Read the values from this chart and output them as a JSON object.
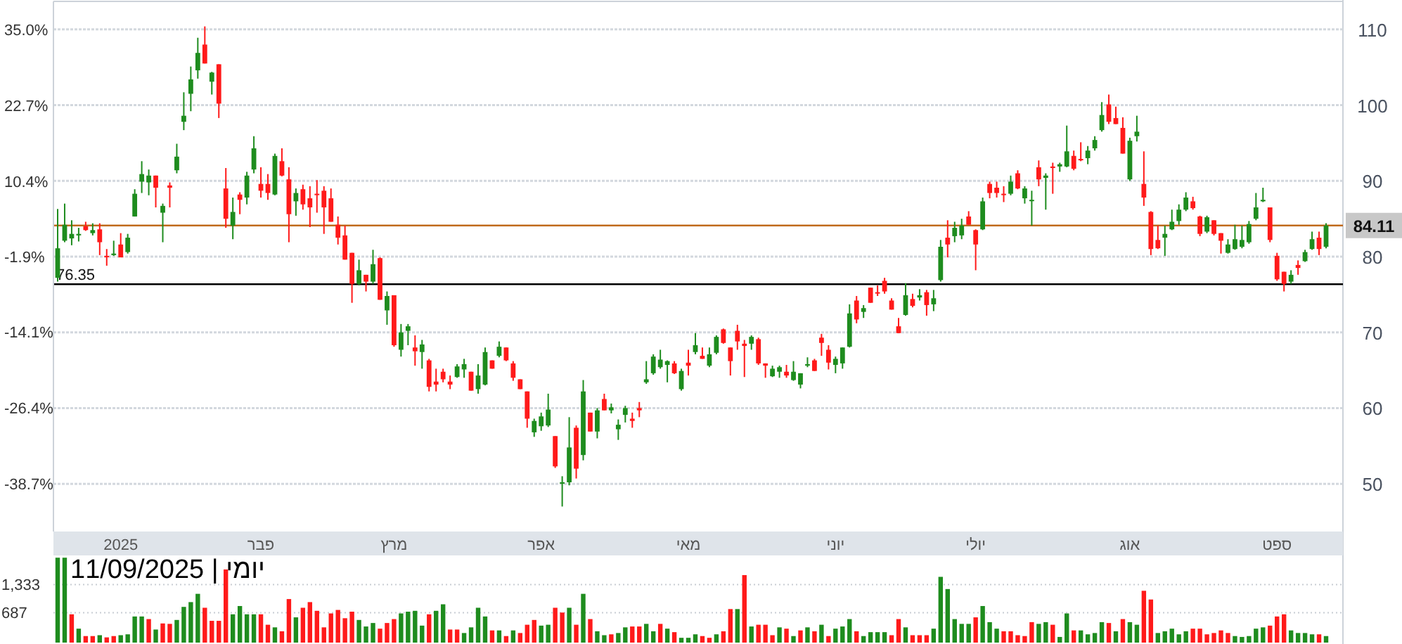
{
  "chart_data": [
    {
      "type": "candlestick",
      "categories": [
        null,
        null,
        null,
        null,
        null,
        null,
        null,
        null,
        null,
        "2025",
        null,
        null,
        null,
        null,
        null,
        null,
        null,
        null,
        null,
        null,
        null,
        null,
        null,
        null,
        null,
        null,
        null,
        null,
        null,
        "פבר",
        null,
        null,
        null,
        null,
        null,
        null,
        null,
        null,
        null,
        null,
        null,
        null,
        null,
        null,
        null,
        null,
        null,
        null,
        "מרץ",
        null,
        null,
        null,
        null,
        null,
        null,
        null,
        null,
        null,
        null,
        null,
        null,
        null,
        null,
        null,
        null,
        null,
        null,
        null,
        null,
        "אפר",
        null,
        null,
        null,
        null,
        null,
        null,
        null,
        null,
        null,
        null,
        null,
        null,
        null,
        null,
        null,
        null,
        null,
        null,
        null,
        null,
        "מאי",
        null,
        null,
        null,
        null,
        null,
        null,
        null,
        null,
        null,
        null,
        null,
        null,
        null,
        null,
        null,
        null,
        null,
        null,
        null,
        null,
        "יוני",
        null,
        null,
        null,
        null,
        null,
        null,
        null,
        null,
        null,
        null,
        null,
        null,
        null,
        null,
        null,
        null,
        null,
        null,
        null,
        "יולי",
        null,
        null,
        null,
        null,
        null,
        null,
        null,
        null,
        null,
        null,
        null,
        null,
        null,
        null,
        null,
        null,
        null,
        null,
        null,
        null,
        null,
        "אוג",
        null,
        null,
        null,
        null,
        null,
        null,
        null,
        null,
        null,
        null,
        null,
        null,
        null,
        null,
        null,
        null,
        null,
        null,
        null,
        null,
        "ספט",
        null,
        null,
        null,
        null,
        null,
        null,
        null
      ],
      "ohlc": [
        [
          77.2,
          86.3,
          76.7,
          81.1
        ],
        [
          82.1,
          87.0,
          81.9,
          84.2
        ],
        [
          82.4,
          84.8,
          81.5,
          83.0
        ],
        [
          82.8,
          83.8,
          82.0,
          83.0
        ],
        [
          84.0,
          84.6,
          83.4,
          83.5
        ],
        [
          83.1,
          84.4,
          82.8,
          83.5
        ],
        [
          83.6,
          84.4,
          80.2,
          81.9
        ],
        [
          80.1,
          81.0,
          78.8,
          80.0
        ],
        [
          80.2,
          82.1,
          80.1,
          80.4
        ],
        [
          81.6,
          83.1,
          79.9,
          79.9
        ],
        [
          80.6,
          83.0,
          80.4,
          82.5
        ],
        [
          85.3,
          88.9,
          85.3,
          88.3
        ],
        [
          89.9,
          92.6,
          88.4,
          90.9
        ],
        [
          89.8,
          91.5,
          88.1,
          90.7
        ],
        [
          90.7,
          90.7,
          86.5,
          89.1
        ],
        [
          85.8,
          87.0,
          81.9,
          86.7
        ],
        [
          89.4,
          89.8,
          86.5,
          89.1
        ],
        [
          91.4,
          94.9,
          91.0,
          93.2
        ],
        [
          97.8,
          101.7,
          96.7,
          98.6
        ],
        [
          101.5,
          105.1,
          99.2,
          103.4
        ],
        [
          104.6,
          108.9,
          103.5,
          106.9
        ],
        [
          108.0,
          110.4,
          105.5,
          105.5
        ],
        [
          103.1,
          104.4,
          101.4,
          104.3
        ],
        [
          105.4,
          105.4,
          98.3,
          100.2
        ],
        [
          89.0,
          91.7,
          83.8,
          85.0
        ],
        [
          84.1,
          87.8,
          82.3,
          85.9
        ],
        [
          88.2,
          88.5,
          85.6,
          87.5
        ],
        [
          87.8,
          91.2,
          86.9,
          90.7
        ],
        [
          91.5,
          95.9,
          91.0,
          94.3
        ],
        [
          89.6,
          91.8,
          87.8,
          88.7
        ],
        [
          89.6,
          90.9,
          87.5,
          88.4
        ],
        [
          88.2,
          93.6,
          88.1,
          93.3
        ],
        [
          92.6,
          94.3,
          90.6,
          90.7
        ],
        [
          90.2,
          91.8,
          81.9,
          85.6
        ],
        [
          87.3,
          89.0,
          85.4,
          88.4
        ],
        [
          88.9,
          89.5,
          86.2,
          86.9
        ],
        [
          87.7,
          89.3,
          83.9,
          86.5
        ],
        [
          88.3,
          90.1,
          85.8,
          88.2
        ],
        [
          88.7,
          89.3,
          83.0,
          86.5
        ],
        [
          87.7,
          89.0,
          84.6,
          84.6
        ],
        [
          84.2,
          85.3,
          81.6,
          82.5
        ],
        [
          82.8,
          84.1,
          79.6,
          79.6
        ],
        [
          80.5,
          80.5,
          73.9,
          76.4
        ],
        [
          76.4,
          79.6,
          76.2,
          78.2
        ],
        [
          77.6,
          77.6,
          75.4,
          76.7
        ],
        [
          76.7,
          80.9,
          76.4,
          79.0
        ],
        [
          79.8,
          79.9,
          74.3,
          74.3
        ],
        [
          72.9,
          75.4,
          71.0,
          74.8
        ],
        [
          74.9,
          74.9,
          68.1,
          68.3
        ],
        [
          67.7,
          71.1,
          66.8,
          70.0
        ],
        [
          70.2,
          71.1,
          68.3,
          70.8
        ],
        [
          68.0,
          69.6,
          65.6,
          67.5
        ],
        [
          67.4,
          69.0,
          65.2,
          68.4
        ],
        [
          66.3,
          66.5,
          62.2,
          62.8
        ],
        [
          63.5,
          65.2,
          62.2,
          63.1
        ],
        [
          64.8,
          65.2,
          63.4,
          63.8
        ],
        [
          63.5,
          64.3,
          62.5,
          63.1
        ],
        [
          64.1,
          65.8,
          64.0,
          65.5
        ],
        [
          65.1,
          66.5,
          64.0,
          65.8
        ],
        [
          64.8,
          64.8,
          62.3,
          62.3
        ],
        [
          62.5,
          65.8,
          61.9,
          64.3
        ],
        [
          63.1,
          68.0,
          63.0,
          67.4
        ],
        [
          66.3,
          66.3,
          65.2,
          65.2
        ],
        [
          66.9,
          68.8,
          66.7,
          68.1
        ],
        [
          68.0,
          68.0,
          66.2,
          66.3
        ],
        [
          65.9,
          66.2,
          63.6,
          64.0
        ],
        [
          63.8,
          63.8,
          62.5,
          62.5
        ],
        [
          62.2,
          62.2,
          57.4,
          58.6
        ],
        [
          56.8,
          58.6,
          56.2,
          58.3
        ],
        [
          57.6,
          59.4,
          57.0,
          58.9
        ],
        [
          57.7,
          61.9,
          57.5,
          59.8
        ],
        [
          56.3,
          56.3,
          52.1,
          52.3
        ],
        [
          50.1,
          51.0,
          47.0,
          50.2
        ],
        [
          50.2,
          58.8,
          49.8,
          54.8
        ],
        [
          57.4,
          57.7,
          50.7,
          52.0
        ],
        [
          53.8,
          63.7,
          53.1,
          62.2
        ],
        [
          59.4,
          59.4,
          56.9,
          56.9
        ],
        [
          56.9,
          60.0,
          56.0,
          59.7
        ],
        [
          61.2,
          61.9,
          59.7,
          59.7
        ],
        [
          59.7,
          60.6,
          59.3,
          60.1
        ],
        [
          57.2,
          58.5,
          55.8,
          57.8
        ],
        [
          59.1,
          60.3,
          58.1,
          60.0
        ],
        [
          58.6,
          59.4,
          57.4,
          58.3
        ],
        [
          60.0,
          60.8,
          58.8,
          59.7
        ],
        [
          63.4,
          66.2,
          63.2,
          63.8
        ],
        [
          64.6,
          67.1,
          64.4,
          66.8
        ],
        [
          65.4,
          67.7,
          65.2,
          66.4
        ],
        [
          65.7,
          66.3,
          63.4,
          66.2
        ],
        [
          65.9,
          66.2,
          64.5,
          64.6
        ],
        [
          62.5,
          65.2,
          62.3,
          64.9
        ],
        [
          66.0,
          67.7,
          64.3,
          65.6
        ],
        [
          67.4,
          69.9,
          67.1,
          68.3
        ],
        [
          66.9,
          68.0,
          66.5,
          66.5
        ],
        [
          65.6,
          68.0,
          65.4,
          67.1
        ],
        [
          67.3,
          69.6,
          67.1,
          69.4
        ],
        [
          70.4,
          70.5,
          68.5,
          68.6
        ],
        [
          68.0,
          68.0,
          64.3,
          66.2
        ],
        [
          70.2,
          71.0,
          67.7,
          68.8
        ],
        [
          68.5,
          69.0,
          64.1,
          68.2
        ],
        [
          68.5,
          69.6,
          67.7,
          69.4
        ],
        [
          69.1,
          69.3,
          65.7,
          65.9
        ],
        [
          65.9,
          65.9,
          64.0,
          65.6
        ],
        [
          64.2,
          65.6,
          64.1,
          65.2
        ],
        [
          64.8,
          65.6,
          64.0,
          65.4
        ],
        [
          64.8,
          65.7,
          64.0,
          64.3
        ],
        [
          63.7,
          66.2,
          63.6,
          64.8
        ],
        [
          63.1,
          64.6,
          62.6,
          64.6
        ],
        [
          65.6,
          66.7,
          65.4,
          65.8
        ],
        [
          66.3,
          66.5,
          64.9,
          64.9
        ],
        [
          69.3,
          69.8,
          66.9,
          68.6
        ],
        [
          67.7,
          68.3,
          65.1,
          66.0
        ],
        [
          65.7,
          66.8,
          64.6,
          66.5
        ],
        [
          65.9,
          68.0,
          65.2,
          68.0
        ],
        [
          68.1,
          73.7,
          68.0,
          72.5
        ],
        [
          74.2,
          74.8,
          71.2,
          71.7
        ],
        [
          72.7,
          73.6,
          71.9,
          73.2
        ],
        [
          75.9,
          75.9,
          73.9,
          73.9
        ],
        [
          75.3,
          76.2,
          74.8,
          75.2
        ],
        [
          76.8,
          77.2,
          75.1,
          75.4
        ],
        [
          74.2,
          74.5,
          73.0,
          73.0
        ],
        [
          70.8,
          71.9,
          69.9,
          69.9
        ],
        [
          72.3,
          76.5,
          72.2,
          74.9
        ],
        [
          74.4,
          75.1,
          73.3,
          73.5
        ],
        [
          74.6,
          75.7,
          74.2,
          74.9
        ],
        [
          75.3,
          75.6,
          72.2,
          73.6
        ],
        [
          73.7,
          75.6,
          72.8,
          74.5
        ],
        [
          76.9,
          82.2,
          76.7,
          81.3
        ],
        [
          82.5,
          84.8,
          79.9,
          81.6
        ],
        [
          82.7,
          84.6,
          81.9,
          83.8
        ],
        [
          82.8,
          85.0,
          82.3,
          84.1
        ],
        [
          85.3,
          86.0,
          84.2,
          84.2
        ],
        [
          83.5,
          83.6,
          78.2,
          81.6
        ],
        [
          83.6,
          87.8,
          83.5,
          87.3
        ],
        [
          89.6,
          89.9,
          87.7,
          88.4
        ],
        [
          89.1,
          89.9,
          87.8,
          88.4
        ],
        [
          88.3,
          89.3,
          87.2,
          88.2
        ],
        [
          88.3,
          90.7,
          88.1,
          89.9
        ],
        [
          91.0,
          91.4,
          88.9,
          89.0
        ],
        [
          87.7,
          89.3,
          87.0,
          89.0
        ],
        [
          87.4,
          88.7,
          84.1,
          87.5
        ],
        [
          91.8,
          92.7,
          89.3,
          90.2
        ],
        [
          90.4,
          91.0,
          86.2,
          90.7
        ],
        [
          91.9,
          92.4,
          88.3,
          91.7
        ],
        [
          91.9,
          92.4,
          91.2,
          92.2
        ],
        [
          91.9,
          97.3,
          91.8,
          93.9
        ],
        [
          93.3,
          94.0,
          91.4,
          91.6
        ],
        [
          92.9,
          95.1,
          92.6,
          92.8
        ],
        [
          93.0,
          94.6,
          92.2,
          94.0
        ],
        [
          94.3,
          95.9,
          94.0,
          95.4
        ],
        [
          96.7,
          100.4,
          96.5,
          98.7
        ],
        [
          100.1,
          101.4,
          97.5,
          97.8
        ],
        [
          98.3,
          99.8,
          97.5,
          97.5
        ],
        [
          97.0,
          98.4,
          93.6,
          93.6
        ],
        [
          90.2,
          95.7,
          90.0,
          95.3
        ],
        [
          95.9,
          98.6,
          95.2,
          96.5
        ],
        [
          89.6,
          93.9,
          86.7,
          87.8
        ],
        [
          85.9,
          86.0,
          80.2,
          81.0
        ],
        [
          82.2,
          84.1,
          81.0,
          81.1
        ],
        [
          82.5,
          84.1,
          80.1,
          83.0
        ],
        [
          83.6,
          86.2,
          83.5,
          84.6
        ],
        [
          84.7,
          86.9,
          84.2,
          86.2
        ],
        [
          86.2,
          88.5,
          86.0,
          87.8
        ],
        [
          87.3,
          87.9,
          86.2,
          86.4
        ],
        [
          85.3,
          85.4,
          82.7,
          83.0
        ],
        [
          83.3,
          85.4,
          83.1,
          85.2
        ],
        [
          84.8,
          84.8,
          82.8,
          83.0
        ],
        [
          83.1,
          83.1,
          80.4,
          82.1
        ],
        [
          80.5,
          82.3,
          80.4,
          81.6
        ],
        [
          81.0,
          84.2,
          80.9,
          82.3
        ],
        [
          81.3,
          84.1,
          81.1,
          82.2
        ],
        [
          81.9,
          84.7,
          81.7,
          84.3
        ],
        [
          85.0,
          88.4,
          84.8,
          86.5
        ],
        [
          87.3,
          89.1,
          87.2,
          87.5
        ],
        [
          86.5,
          86.5,
          81.9,
          82.2
        ],
        [
          80.1,
          80.5,
          76.8,
          77.0
        ],
        [
          78.0,
          78.0,
          75.4,
          76.4
        ],
        [
          76.7,
          78.2,
          76.4,
          77.6
        ],
        [
          78.9,
          79.5,
          77.6,
          78.5
        ],
        [
          79.4,
          80.9,
          79.3,
          80.6
        ],
        [
          81.0,
          83.3,
          80.9,
          82.3
        ],
        [
          82.5,
          83.3,
          80.2,
          81.0
        ],
        [
          81.3,
          84.4,
          81.1,
          84.11
        ]
      ],
      "ylim": [
        43.7,
        113.7
      ],
      "yticks": [
        50,
        60,
        70,
        80,
        90,
        100,
        110
      ],
      "y2lim": [
        -46.44,
        39.54
      ],
      "y2ticks": [
        {
          "value": 35.0,
          "label": "35.0%"
        },
        {
          "value": 22.7,
          "label": "22.7%"
        },
        {
          "value": 10.4,
          "label": "10.4%"
        },
        {
          "value": -1.9,
          "label": "-1.9%"
        },
        {
          "value": -14.1,
          "label": "-14.1%"
        },
        {
          "value": -26.4,
          "label": "-26.4%"
        },
        {
          "value": -38.7,
          "label": "-38.7%"
        }
      ],
      "grid": "y",
      "ref_lines": [
        {
          "axis": "y",
          "value": 84.11,
          "label": "84.11",
          "color": "#c06a1c"
        },
        {
          "axis": "y",
          "value": 76.35,
          "label": "76.35",
          "color": "#000000"
        }
      ]
    },
    {
      "type": "bar",
      "title": "11/09/2025 | יומי",
      "categories": [
        null,
        null,
        null,
        null,
        null,
        null,
        null,
        null,
        null,
        null,
        null,
        null,
        null,
        null,
        null,
        null,
        null,
        null,
        null,
        null,
        null,
        null,
        null,
        null,
        null,
        null,
        null,
        null,
        null,
        null,
        null,
        null,
        null,
        null,
        null,
        null,
        null,
        null,
        null,
        null,
        null,
        null,
        null,
        null,
        null,
        null,
        null,
        null,
        null,
        null,
        null,
        null,
        null,
        null,
        null,
        null,
        null,
        null,
        null,
        null,
        null,
        null,
        null,
        null,
        null,
        null,
        null,
        null,
        null,
        null,
        null,
        null,
        null,
        null,
        null,
        null,
        null,
        null,
        null,
        null,
        null,
        null,
        null,
        null,
        null,
        null,
        null,
        null,
        null,
        null,
        null,
        null,
        null,
        null,
        null,
        null,
        null,
        null,
        null,
        null,
        null,
        null,
        null,
        null,
        null,
        null,
        null,
        null,
        null,
        null,
        null,
        null,
        null,
        null,
        null,
        null,
        null,
        null,
        null,
        null,
        null,
        null,
        null,
        null,
        null,
        null,
        null,
        null,
        null,
        null,
        null,
        null,
        null,
        null,
        null,
        null,
        null,
        null,
        null,
        null,
        null,
        null,
        null,
        null,
        null,
        null,
        null,
        null,
        null,
        null,
        null,
        null,
        null,
        null,
        null,
        null,
        null,
        null,
        null,
        null,
        null,
        null,
        null,
        null,
        null,
        null,
        null,
        null,
        null,
        null,
        null,
        null,
        null,
        null,
        null,
        null,
        null,
        null,
        null,
        null,
        null,
        null
      ],
      "values": [
        1950,
        1950,
        650,
        320,
        150,
        150,
        170,
        120,
        150,
        170,
        190,
        600,
        600,
        540,
        300,
        440,
        430,
        520,
        820,
        930,
        1120,
        800,
        500,
        500,
        1680,
        650,
        840,
        650,
        650,
        650,
        410,
        350,
        260,
        1000,
        580,
        800,
        930,
        730,
        350,
        670,
        750,
        560,
        710,
        520,
        370,
        450,
        320,
        450,
        540,
        670,
        710,
        730,
        390,
        650,
        730,
        880,
        300,
        300,
        220,
        350,
        800,
        600,
        280,
        280,
        150,
        280,
        220,
        410,
        520,
        390,
        410,
        800,
        690,
        800,
        410,
        1120,
        540,
        260,
        170,
        190,
        220,
        350,
        370,
        370,
        430,
        260,
        430,
        320,
        240,
        110,
        110,
        190,
        150,
        110,
        190,
        260,
        770,
        770,
        1550,
        370,
        410,
        410,
        170,
        350,
        320,
        150,
        280,
        350,
        260,
        410,
        150,
        320,
        370,
        540,
        260,
        150,
        240,
        240,
        240,
        170,
        540,
        350,
        170,
        170,
        170,
        320,
        1510,
        1230,
        540,
        430,
        430,
        580,
        840,
        470,
        320,
        260,
        260,
        170,
        150,
        470,
        430,
        470,
        410,
        130,
        670,
        280,
        280,
        190,
        220,
        470,
        450,
        260,
        540,
        470,
        410,
        1190,
        990,
        220,
        260,
        320,
        190,
        260,
        320,
        320,
        190,
        220,
        280,
        220,
        150,
        130,
        150,
        320,
        350,
        390,
        600,
        650,
        280,
        220,
        220,
        190,
        190,
        150
      ],
      "colors": [
        "#1e8c1e",
        "#1e8c1e",
        "#ff1a1a",
        "#1e8c1e",
        "#ff1a1a",
        "#ff1a1a",
        "#1e8c1e",
        "#ff1a1a",
        "#ff1a1a",
        "#1e8c1e",
        "#1e8c1e",
        "#1e8c1e",
        "#1e8c1e",
        "#ff1a1a",
        "#1e8c1e",
        "#ff1a1a",
        "#ff1a1a",
        "#1e8c1e",
        "#1e8c1e",
        "#1e8c1e",
        "#1e8c1e",
        "#ff1a1a",
        "#ff1a1a",
        "#ff1a1a",
        "#ff1a1a",
        "#1e8c1e",
        "#1e8c1e",
        "#1e8c1e",
        "#1e8c1e",
        "#ff1a1a",
        "#ff1a1a",
        "#1e8c1e",
        "#ff1a1a",
        "#ff1a1a",
        "#1e8c1e",
        "#ff1a1a",
        "#ff1a1a",
        "#ff1a1a",
        "#ff1a1a",
        "#ff1a1a",
        "#ff1a1a",
        "#ff1a1a",
        "#ff1a1a",
        "#1e8c1e",
        "#1e8c1e",
        "#1e8c1e",
        "#ff1a1a",
        "#ff1a1a",
        "#ff1a1a",
        "#1e8c1e",
        "#1e8c1e",
        "#1e8c1e",
        "#1e8c1e",
        "#ff1a1a",
        "#1e8c1e",
        "#1e8c1e",
        "#ff1a1a",
        "#ff1a1a",
        "#1e8c1e",
        "#1e8c1e",
        "#1e8c1e",
        "#1e8c1e",
        "#ff1a1a",
        "#1e8c1e",
        "#ff1a1a",
        "#1e8c1e",
        "#ff1a1a",
        "#ff1a1a",
        "#ff1a1a",
        "#1e8c1e",
        "#1e8c1e",
        "#ff1a1a",
        "#ff1a1a",
        "#1e8c1e",
        "#ff1a1a",
        "#1e8c1e",
        "#ff1a1a",
        "#1e8c1e",
        "#1e8c1e",
        "#ff1a1a",
        "#1e8c1e",
        "#1e8c1e",
        "#ff1a1a",
        "#ff1a1a",
        "#1e8c1e",
        "#1e8c1e",
        "#ff1a1a",
        "#1e8c1e",
        "#ff1a1a",
        "#1e8c1e",
        "#1e8c1e",
        "#1e8c1e",
        "#ff1a1a",
        "#ff1a1a",
        "#1e8c1e",
        "#ff1a1a",
        "#ff1a1a",
        "#1e8c1e",
        "#ff1a1a",
        "#1e8c1e",
        "#ff1a1a",
        "#ff1a1a",
        "#ff1a1a",
        "#1e8c1e",
        "#ff1a1a",
        "#1e8c1e",
        "#ff1a1a",
        "#1e8c1e",
        "#ff1a1a",
        "#1e8c1e",
        "#ff1a1a",
        "#1e8c1e",
        "#1e8c1e",
        "#1e8c1e",
        "#ff1a1a",
        "#1e8c1e",
        "#1e8c1e",
        "#1e8c1e",
        "#1e8c1e",
        "#ff1a1a",
        "#ff1a1a",
        "#1e8c1e",
        "#ff1a1a",
        "#ff1a1a",
        "#ff1a1a",
        "#1e8c1e",
        "#1e8c1e",
        "#1e8c1e",
        "#1e8c1e",
        "#1e8c1e",
        "#1e8c1e",
        "#ff1a1a",
        "#1e8c1e",
        "#1e8c1e",
        "#1e8c1e",
        "#ff1a1a",
        "#ff1a1a",
        "#ff1a1a",
        "#ff1a1a",
        "#ff1a1a",
        "#1e8c1e",
        "#1e8c1e",
        "#ff1a1a",
        "#1e8c1e",
        "#1e8c1e",
        "#ff1a1a",
        "#1e8c1e",
        "#1e8c1e",
        "#1e8c1e",
        "#1e8c1e",
        "#ff1a1a",
        "#1e8c1e",
        "#ff1a1a",
        "#1e8c1e",
        "#1e8c1e",
        "#ff1a1a",
        "#ff1a1a",
        "#1e8c1e",
        "#1e8c1e",
        "#1e8c1e",
        "#1e8c1e",
        "#1e8c1e",
        "#ff1a1a",
        "#ff1a1a",
        "#ff1a1a",
        "#ff1a1a",
        "#ff1a1a",
        "#ff1a1a",
        "#1e8c1e",
        "#1e8c1e",
        "#1e8c1e",
        "#1e8c1e",
        "#1e8c1e",
        "#ff1a1a",
        "#ff1a1a",
        "#ff1a1a",
        "#1e8c1e",
        "#1e8c1e",
        "#1e8c1e",
        "#1e8c1e",
        "#ff1a1a",
        "#1e8c1e"
      ],
      "ylim": [
        0,
        1970
      ],
      "yticks": [
        687,
        {
          "value": 1333,
          "label": "1,333"
        }
      ],
      "grid": "y",
      "tick_labels": "y"
    }
  ]
}
